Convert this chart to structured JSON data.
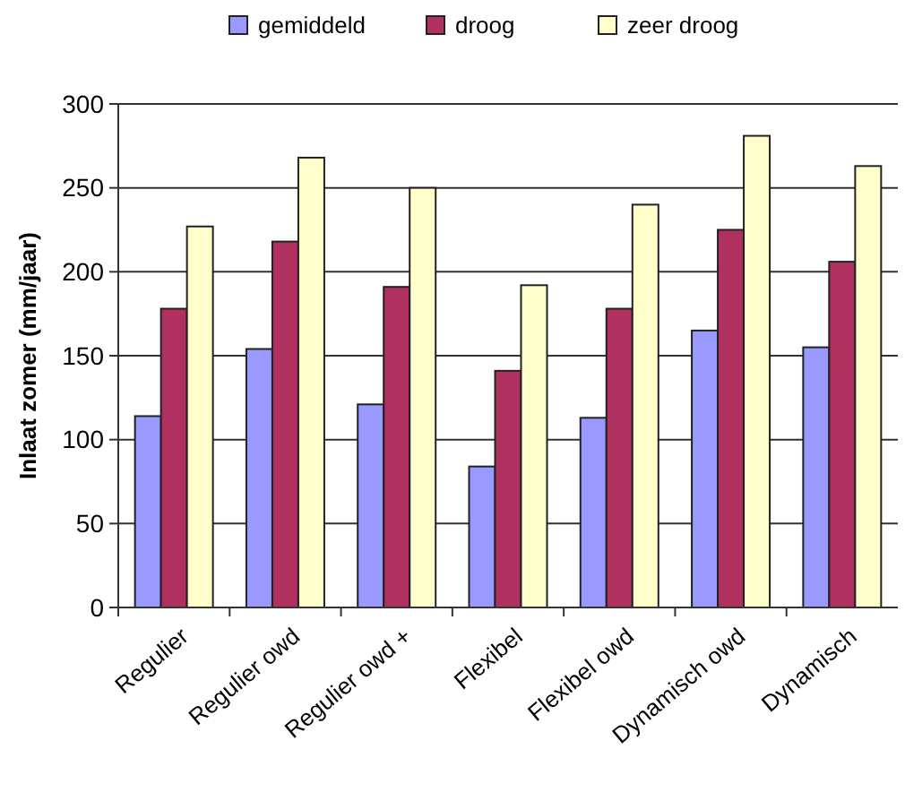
{
  "chart_data": {
    "type": "bar",
    "ylabel": "Inlaat zomer (mm/jaar)",
    "categories": [
      "Regulier",
      "Regulier owd",
      "Regulier owd +",
      "Flexibel",
      "Flexibel owd",
      "Dynamisch owd",
      "Dynamisch"
    ],
    "series": [
      {
        "name": "gemiddeld",
        "color": "#9999ff",
        "values": [
          114,
          154,
          121,
          84,
          113,
          165,
          155
        ]
      },
      {
        "name": "droog",
        "color": "#b03060",
        "values": [
          178,
          218,
          191,
          141,
          178,
          225,
          206
        ]
      },
      {
        "name": "zeer droog",
        "color": "#ffffcc",
        "values": [
          227,
          268,
          250,
          192,
          240,
          281,
          263
        ]
      }
    ],
    "ylim": [
      0,
      300
    ],
    "yticks": [
      0,
      50,
      100,
      150,
      200,
      250,
      300
    ],
    "grid": "y",
    "legend": "top"
  }
}
